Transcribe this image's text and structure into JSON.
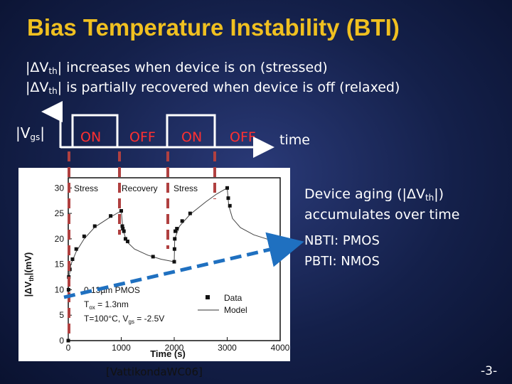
{
  "title": "Bias Temperature Instability (BTI)",
  "bullets": {
    "b1_prefix": "|ΔV",
    "b1_sub": "th",
    "b1_suffix": "| increases when device is on (stressed)",
    "b2_prefix": "|ΔV",
    "b2_sub": "th",
    "b2_suffix": "| is partially recovered when device is off (relaxed)"
  },
  "waveform": {
    "vgs_prefix": "|V",
    "vgs_sub": "gs",
    "vgs_suffix": "|",
    "phases": [
      "ON",
      "OFF",
      "ON",
      "OFF"
    ],
    "time_label": "time"
  },
  "aging": {
    "line1_prefix": "Device aging (|ΔV",
    "line1_sub": "th",
    "line1_suffix": "|)",
    "line2": "accumulates over time",
    "nbti": "NBTI: PMOS",
    "pbti": "PBTI: NMOS"
  },
  "citation": "[VattikondaWC06]",
  "page_number": "-3-",
  "colors": {
    "title": "#f0c020",
    "background": "#1a2860",
    "phase_marker": "#b04040",
    "arrow": "#1f70c0"
  },
  "chart_data": {
    "type": "scatter",
    "xlabel": "Time (s)",
    "ylabel_prefix": "|ΔV",
    "ylabel_sub": "th",
    "ylabel_suffix": "|(mV)",
    "xlim": [
      0,
      4000
    ],
    "ylim": [
      0,
      32
    ],
    "x_ticks": [
      "0",
      "1000",
      "2000",
      "3000",
      "4000"
    ],
    "y_ticks": [
      "0",
      "5",
      "10",
      "15",
      "20",
      "25",
      "30"
    ],
    "phase_labels": [
      "Stress",
      "Recovery",
      "Stress"
    ],
    "annotations": {
      "process": "0.13µm PMOS",
      "tox_prefix": "T",
      "tox_sub": "ox",
      "tox_suffix": " = 1.3nm",
      "cond_prefix": "T=100°C, V",
      "cond_sub": "gs",
      "cond_suffix": " = -2.5V"
    },
    "legend": {
      "data": "Data",
      "model": "Model"
    },
    "legend_placement": "bottom-right",
    "series": [
      {
        "name": "Data",
        "points": [
          [
            0,
            0
          ],
          [
            5,
            10
          ],
          [
            10,
            12.5
          ],
          [
            30,
            14
          ],
          [
            80,
            16
          ],
          [
            150,
            18
          ],
          [
            300,
            20.5
          ],
          [
            500,
            22.5
          ],
          [
            800,
            24.5
          ],
          [
            1000,
            25.5
          ],
          [
            1020,
            22.5
          ],
          [
            1030,
            22
          ],
          [
            1050,
            21.5
          ],
          [
            1080,
            20
          ],
          [
            1120,
            19.5
          ],
          [
            1600,
            16.5
          ],
          [
            2000,
            15.5
          ],
          [
            2005,
            18
          ],
          [
            2010,
            20
          ],
          [
            2020,
            21.5
          ],
          [
            2050,
            22
          ],
          [
            2150,
            23.5
          ],
          [
            2300,
            25
          ],
          [
            3000,
            30
          ],
          [
            3020,
            28
          ],
          [
            3050,
            26.5
          ]
        ]
      },
      {
        "name": "Model",
        "segments": [
          [
            [
              0,
              0
            ],
            [
              10,
              12
            ],
            [
              50,
              15
            ],
            [
              150,
              17.5
            ],
            [
              300,
              20
            ],
            [
              500,
              22.3
            ],
            [
              750,
              24
            ],
            [
              1000,
              25.5
            ]
          ],
          [
            [
              1000,
              25.5
            ],
            [
              1030,
              22
            ],
            [
              1100,
              19.5
            ],
            [
              1250,
              18
            ],
            [
              1500,
              16.8
            ],
            [
              1750,
              16
            ],
            [
              2000,
              15.5
            ]
          ],
          [
            [
              2000,
              15.5
            ],
            [
              2010,
              20
            ],
            [
              2100,
              22.5
            ],
            [
              2300,
              24.8
            ],
            [
              2600,
              27.3
            ],
            [
              2800,
              28.8
            ],
            [
              3000,
              30
            ]
          ],
          [
            [
              3000,
              30
            ],
            [
              3030,
              26.5
            ],
            [
              3100,
              24
            ],
            [
              3250,
              22.2
            ],
            [
              3500,
              20.8
            ],
            [
              3800,
              19.8
            ],
            [
              3970,
              19.3
            ]
          ]
        ]
      }
    ]
  }
}
